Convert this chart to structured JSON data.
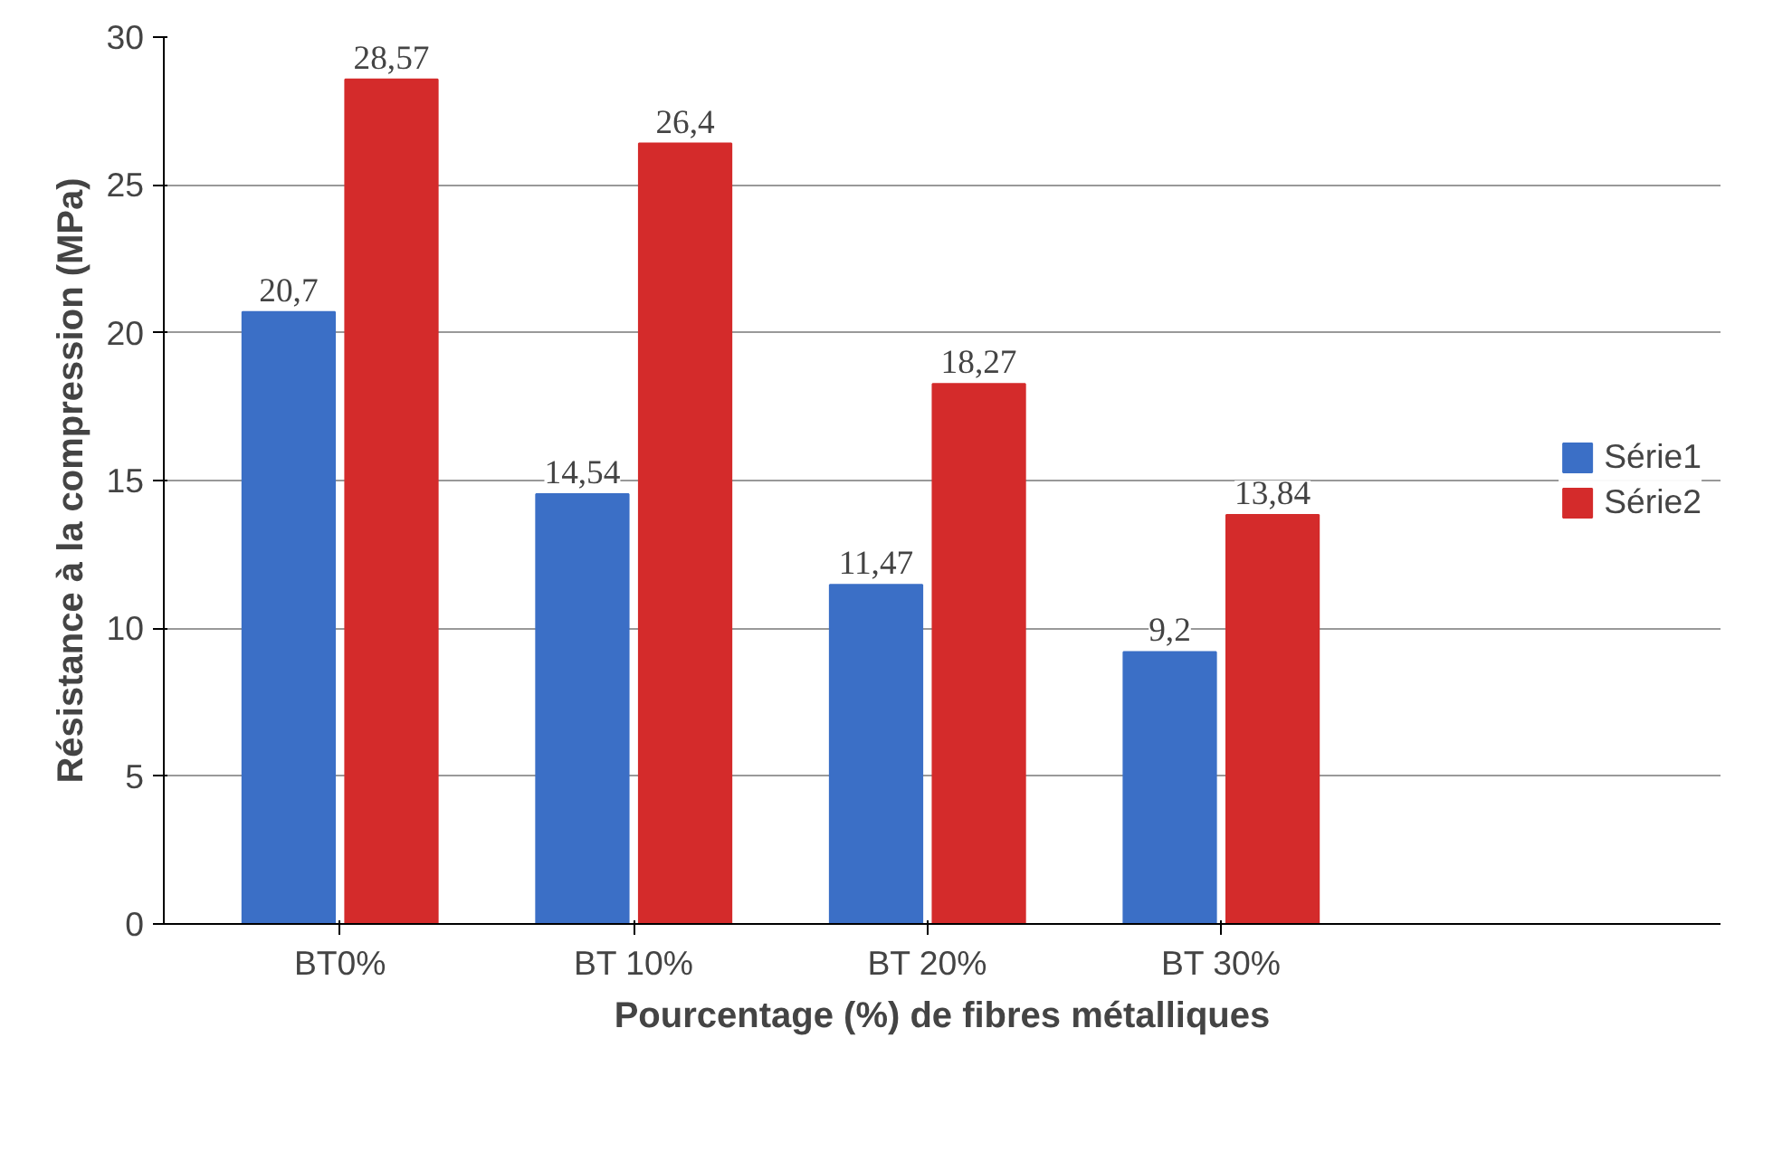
{
  "chart_data": {
    "type": "bar",
    "xlabel": "Pourcentage (%) de fibres métalliques",
    "ylabel": "Résistance à la compression (MPa)",
    "categories": [
      "BT0%",
      "BT 10%",
      "BT 20%",
      "BT 30%"
    ],
    "series": [
      {
        "name": "Série1",
        "color": "#3b6fc6",
        "values": [
          20.7,
          14.54,
          11.47,
          9.2
        ],
        "value_labels": [
          "20,7",
          "14,54",
          "11,47",
          "9,2"
        ]
      },
      {
        "name": "Série2",
        "color": "#d42b2b",
        "values": [
          28.57,
          26.4,
          18.27,
          13.84
        ],
        "value_labels": [
          "28,57",
          "26,4",
          "18,27",
          "13,84"
        ]
      }
    ],
    "ylim": [
      0,
      30
    ],
    "yticks": [
      0,
      5,
      10,
      15,
      20,
      25,
      30
    ],
    "grid": "y",
    "legend": "right"
  }
}
